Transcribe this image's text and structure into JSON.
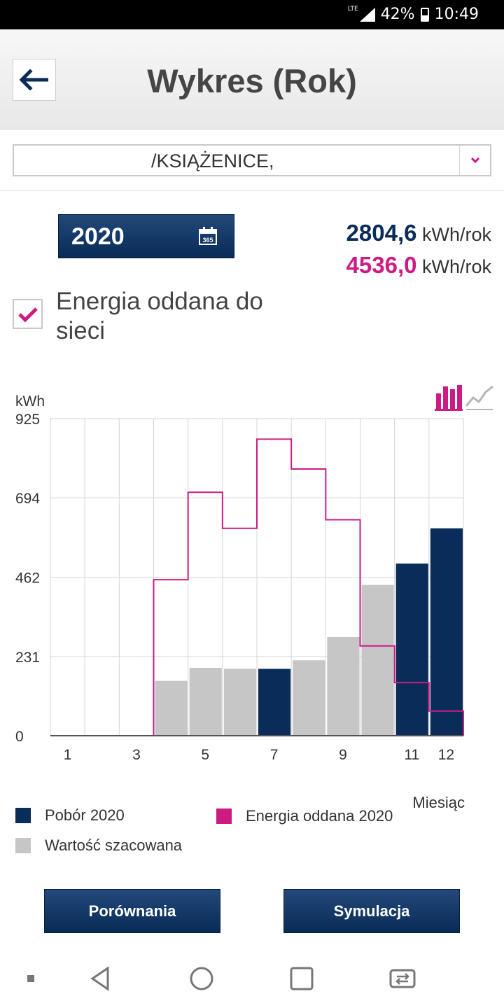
{
  "status_bar": {
    "network": "LTE",
    "battery": "42%",
    "time": "10:49"
  },
  "header": {
    "title": "Wykres (Rok)",
    "back_icon": "arrow-left-icon"
  },
  "location_select": {
    "value": "/KSIĄŻENICE,",
    "caret_icon": "chevron-down-icon"
  },
  "year_picker": {
    "year": "2020",
    "icon": "calendar-365-icon",
    "icon_text": "365"
  },
  "totals": {
    "consumption": {
      "value": "2804,6",
      "unit": "kWh/rok",
      "color": "#0a2c58"
    },
    "export": {
      "value": "4536,0",
      "unit": "kWh/rok",
      "color": "#cc1c83"
    }
  },
  "export_toggle": {
    "checked": true,
    "label": "Energia oddana do sieci"
  },
  "chart_data": {
    "type": "bar",
    "ylabel": "kWh",
    "xlabel": "Miesiąc",
    "ylim": [
      0,
      925
    ],
    "yticks": [
      "0",
      "231",
      "462",
      "694",
      "925"
    ],
    "x_tick_labels": [
      {
        "month": 1,
        "label": "1"
      },
      {
        "month": 3,
        "label": "3"
      },
      {
        "month": 5,
        "label": "5"
      },
      {
        "month": 7,
        "label": "7"
      },
      {
        "month": 9,
        "label": "9"
      },
      {
        "month": 11,
        "label": "11"
      },
      {
        "month": 12,
        "label": "12"
      }
    ],
    "grid": true,
    "bars": [
      {
        "month": 1,
        "value": 0,
        "kind": "none"
      },
      {
        "month": 2,
        "value": 0,
        "kind": "none"
      },
      {
        "month": 3,
        "value": 0,
        "kind": "none"
      },
      {
        "month": 4,
        "value": 160,
        "kind": "estimated"
      },
      {
        "month": 5,
        "value": 198,
        "kind": "estimated"
      },
      {
        "month": 6,
        "value": 195,
        "kind": "estimated"
      },
      {
        "month": 7,
        "value": 195,
        "kind": "actual"
      },
      {
        "month": 8,
        "value": 220,
        "kind": "estimated"
      },
      {
        "month": 9,
        "value": 288,
        "kind": "estimated"
      },
      {
        "month": 10,
        "value": 440,
        "kind": "estimated"
      },
      {
        "month": 11,
        "value": 502,
        "kind": "actual"
      },
      {
        "month": 12,
        "value": 605,
        "kind": "actual"
      }
    ],
    "export_line": {
      "values": [
        0,
        0,
        0,
        455,
        710,
        605,
        865,
        778,
        630,
        262,
        155,
        72
      ]
    },
    "legend": [
      {
        "label": "Pobór 2020",
        "color": "#0a2c58"
      },
      {
        "label": "Energia oddana 2020",
        "color": "#cc1c83"
      },
      {
        "label": "Wartość szacowana",
        "color": "#c6c6c6"
      }
    ],
    "colors": {
      "actual": "#0a2c58",
      "estimated": "#c6c6c6",
      "line": "#cc1c83"
    }
  },
  "chart_type_switch": {
    "bar_icon": "bar-chart-icon",
    "line_icon": "line-chart-icon"
  },
  "buttons": {
    "compare": "Porównania",
    "simulate": "Symulacja"
  },
  "nav_bar": {
    "icons": [
      "dot-icon",
      "back-triangle-icon",
      "home-circle-icon",
      "recents-square-icon",
      "switch-app-icon"
    ]
  }
}
